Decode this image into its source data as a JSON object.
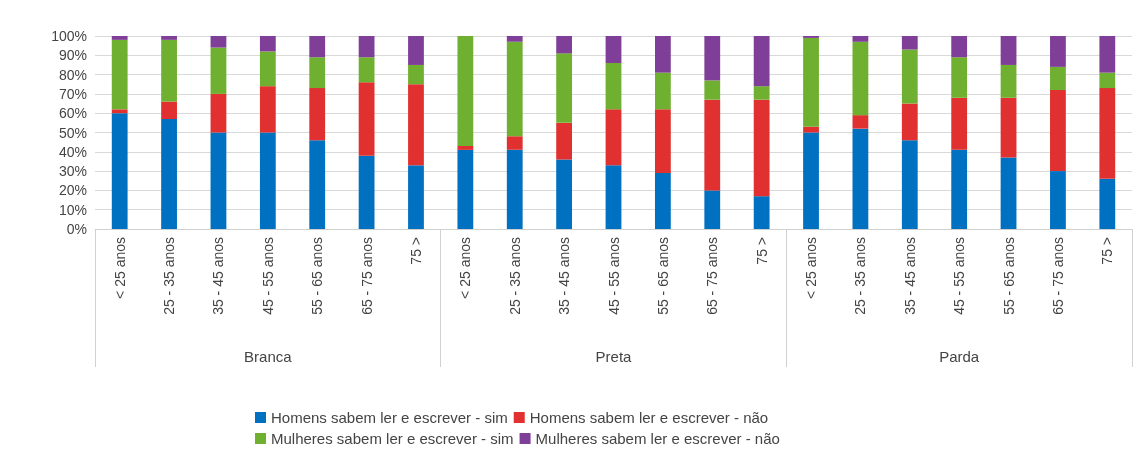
{
  "chart_data": {
    "type": "bar",
    "stacked": true,
    "categories": [
      "< 25 anos",
      "25 - 35 anos",
      "35 - 45 anos",
      "45 - 55 anos",
      "55 - 65 anos",
      "65 - 75 anos",
      "75 >",
      "< 25 anos",
      "25 - 35 anos",
      "35 - 45 anos",
      "45 - 55 anos",
      "55 - 65 anos",
      "65 - 75 anos",
      "75 >",
      "< 25 anos",
      "25 - 35 anos",
      "35 - 45 anos",
      "45 - 55 anos",
      "55 - 65 anos",
      "65 - 75 anos",
      "75 >"
    ],
    "annotations": [
      "Branca",
      "Preta",
      "Parda"
    ],
    "series": [
      {
        "name": "Homens sabem ler e escrever - sim",
        "color": "#0070c0",
        "values": [
          60,
          57,
          50,
          50,
          46,
          38,
          33,
          41,
          41,
          36,
          33,
          29,
          20,
          17,
          50,
          52,
          46,
          41,
          37,
          30,
          26
        ]
      },
      {
        "name": "Homens sabem ler e escrever - não",
        "color": "#e03030",
        "values": [
          2,
          9,
          20,
          24,
          27,
          38,
          42,
          2,
          7,
          19,
          29,
          33,
          47,
          50,
          3,
          7,
          19,
          27,
          31,
          42,
          47
        ]
      },
      {
        "name": "Mulheres sabem ler e escrever - sim",
        "color": "#70b030",
        "values": [
          36,
          32,
          24,
          18,
          16,
          13,
          10,
          57,
          49,
          36,
          24,
          19,
          10,
          7,
          46,
          38,
          28,
          21,
          17,
          12,
          8
        ]
      },
      {
        "name": "Mulheres sabem ler e escrever - não",
        "color": "#7f3f98",
        "values": [
          2,
          2,
          6,
          8,
          11,
          11,
          15,
          0,
          3,
          9,
          14,
          19,
          23,
          26,
          1,
          3,
          7,
          11,
          15,
          16,
          19
        ]
      }
    ],
    "ylim": [
      0,
      100
    ],
    "yticks": [
      {
        "value": 0,
        "label": "0%"
      },
      {
        "value": 10,
        "label": "10%"
      },
      {
        "value": 20,
        "label": "20%"
      },
      {
        "value": 30,
        "label": "30%"
      },
      {
        "value": 40,
        "label": "40%"
      },
      {
        "value": 50,
        "label": "50%"
      },
      {
        "value": 60,
        "label": "60%"
      },
      {
        "value": 70,
        "label": "70%"
      },
      {
        "value": 80,
        "label": "80%"
      },
      {
        "value": 90,
        "label": "90%"
      },
      {
        "value": 100,
        "label": "100%"
      }
    ],
    "grid": "y",
    "legend": "bottom"
  }
}
